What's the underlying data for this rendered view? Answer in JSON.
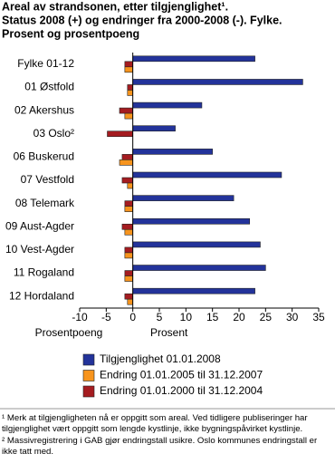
{
  "chart_data": {
    "type": "hbar",
    "title": [
      "Areal av strandsonen, etter tilgjenglighet¹.",
      "Status 2008 (+) og endringer fra 2000-2008 (-). Fylke.",
      "Prosent og prosentpoeng"
    ],
    "categories": [
      "Fylke 01-12",
      "01 Østfold",
      "02 Akershus",
      "03 Oslo²",
      "06 Buskerud",
      "07 Vestfold",
      "08 Telemark",
      "09 Aust-Agder",
      "10 Vest-Agder",
      "11 Rogaland",
      "12 Hordaland"
    ],
    "series": [
      {
        "name": "Tilgjenglighet 01.01.2008",
        "color": "#23339a",
        "values": [
          23,
          32,
          13,
          8,
          15,
          28,
          19,
          22,
          24,
          25,
          23
        ]
      },
      {
        "name": "Endring 01.01.2000 til 31.12.2004",
        "color": "#a51c20",
        "values": [
          -1.5,
          -1,
          -2.5,
          -4.8,
          -2,
          -2,
          -1.5,
          -2,
          -1.5,
          -1.5,
          -1.5
        ]
      },
      {
        "name": "Endring 01.01.2005 til 31.12.2007",
        "color": "#f7941d",
        "values": [
          -1.5,
          -1,
          -1.5,
          null,
          -2.5,
          -1,
          -1.5,
          -1.5,
          -1.5,
          -1.5,
          -1
        ]
      }
    ],
    "legend_order": [
      0,
      2,
      1
    ],
    "xlim": [
      -10,
      35
    ],
    "xticks": [
      -10,
      -5,
      0,
      5,
      10,
      15,
      20,
      25,
      30,
      35
    ],
    "xlabel_left": "Prosentpoeng",
    "xlabel_right": "Prosent",
    "notes": [
      "¹ Merk at tilgjengligheten nå er oppgitt som areal. Ved tidligere publiseringer har tilgjenglighet vært oppgitt som lengde kystlinje, ikke bygningspåvirket kystlinje.",
      "² Massivregistrering i GAB gjør endringstall usikre. Oslo kommunes endringstall er ikke tatt med."
    ]
  }
}
